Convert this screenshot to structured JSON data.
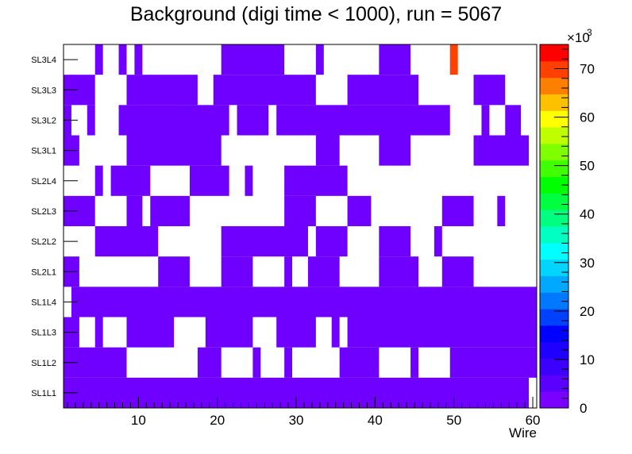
{
  "chart_data": {
    "type": "heatmap",
    "title": "Background (digi time < 1000), run = 5067",
    "xlabel": "Wire",
    "ylabel": "",
    "x_range": [
      0.5,
      60.5
    ],
    "x_ticks": [
      10,
      20,
      30,
      40,
      50,
      60
    ],
    "y_categories": [
      "SL1L1",
      "SL1L2",
      "SL1L3",
      "SL1L4",
      "SL2L1",
      "SL2L2",
      "SL2L3",
      "SL2L4",
      "SL3L1",
      "SL3L2",
      "SL3L3",
      "SL3L4"
    ],
    "z_range": [
      0,
      75000
    ],
    "z_multiplier_label": "×10",
    "z_multiplier_exp": "3",
    "z_ticks": [
      0,
      10,
      20,
      30,
      40,
      50,
      60,
      70
    ],
    "colors": {
      "occupied": "#6f00ff",
      "hot": "#ff0000",
      "palette": [
        "#7a00ff",
        "#5a00ff",
        "#3c00ff",
        "#1f00ff",
        "#0000ff",
        "#0040ff",
        "#0078ff",
        "#00a8ff",
        "#00d4ff",
        "#00ffff",
        "#00ffc0",
        "#00ff80",
        "#00ff40",
        "#00ff00",
        "#40ff00",
        "#80ff00",
        "#c0ff00",
        "#ffff00",
        "#ffc000",
        "#ff8000",
        "#ff4000",
        "#ff0000"
      ]
    },
    "rows": {
      "SL1L1": [
        "1-59",
        "60-60:0"
      ],
      "SL1L2": [
        "1-8",
        "18-20",
        "25-25",
        "29-29",
        "36-40",
        "45-45",
        "50-60"
      ],
      "SL1L3": [
        "1-2",
        "5-5",
        "9-14",
        "19-24",
        "28-32",
        "35-35",
        "37-60"
      ],
      "SL1L4": [
        "2-60"
      ],
      "SL2L1": [
        "1-2",
        "13-16",
        "21-24",
        "29-29",
        "32-35",
        "41-45",
        "49-52"
      ],
      "SL2L2": [
        "5-12",
        "21-31",
        "33-36",
        "41-44",
        "48-48"
      ],
      "SL2L3": [
        "1-4",
        "9-10",
        "12-16",
        "29-32",
        "37-39",
        "49-52",
        "56-56"
      ],
      "SL2L4": [
        "5-5",
        "7-11",
        "17-21",
        "24-24",
        "29-36"
      ],
      "SL3L1": [
        "1-2",
        "9-20",
        "33-35",
        "41-44",
        "53-59"
      ],
      "SL3L2": [
        "1-1",
        "4-4",
        "8-21",
        "23-26",
        "28-49",
        "54-54",
        "57-58"
      ],
      "SL3L3": [
        "1-4",
        "9-17",
        "20-32",
        "37-45",
        "53-56"
      ],
      "SL3L4": [
        "5-5",
        "8-8",
        "10-10",
        "21-28",
        "33-33",
        "41-44",
        "50-50:70000"
      ]
    },
    "default_value": 3000
  }
}
